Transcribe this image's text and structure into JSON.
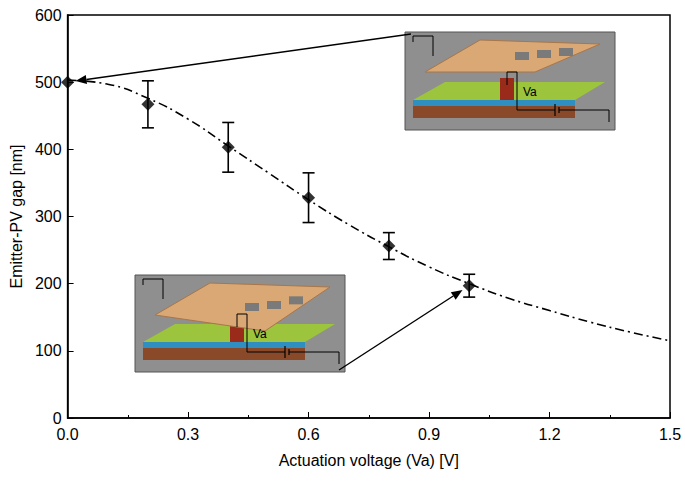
{
  "chart_data": {
    "type": "scatter",
    "xlabel": "Actuation voltage (Va) [V]",
    "ylabel": "Emitter-PV gap [nm]",
    "xlim": [
      0,
      1.5
    ],
    "xticks": [
      {
        "value": 0,
        "label": "0.0"
      },
      0.3,
      0.6,
      0.9,
      1.2,
      1.5
    ],
    "ylim": [
      0,
      600
    ],
    "yticks": [
      0,
      100,
      200,
      300,
      400,
      500,
      600
    ],
    "grid": false,
    "series": [
      {
        "type": "scatter",
        "marker": "diamond",
        "color": "#000000",
        "x": [
          0,
          0.2,
          0.4,
          0.6,
          0.8,
          1.0
        ],
        "values": [
          500,
          467,
          403,
          328,
          256,
          197
        ],
        "errors": [
          0,
          35,
          37,
          37,
          20,
          17
        ]
      },
      {
        "type": "line",
        "line_style": "dashdot",
        "color": "#000000",
        "x": [
          0,
          0.1,
          0.2,
          0.3,
          0.4,
          0.5,
          0.6,
          0.7,
          0.8,
          0.9,
          1.0,
          1.1,
          1.2,
          1.3,
          1.4,
          1.5
        ],
        "values": [
          503,
          497,
          476,
          445,
          405,
          365,
          325,
          288,
          255,
          225,
          200,
          178,
          160,
          143,
          128,
          115
        ]
      }
    ],
    "insets": [
      {
        "label": "Va",
        "points_to": {
          "x": 0,
          "y": 500
        }
      },
      {
        "label": "Va",
        "points_to": {
          "x": 1.0,
          "y": 197
        }
      }
    ]
  }
}
